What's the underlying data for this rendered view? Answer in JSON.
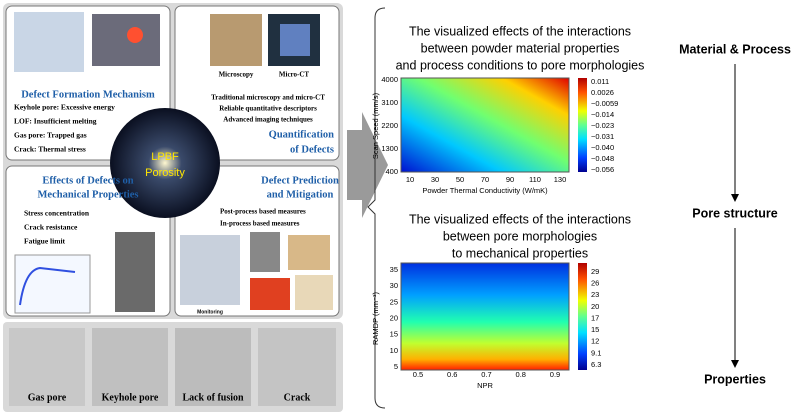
{
  "left": {
    "formation": {
      "title": "Defect Formation Mechanism",
      "bullets": [
        "Keyhole pore: Excessive energy",
        "LOF: Insufficient melting",
        "Gas pore: Trapped gas",
        "Crack: Thermal stress"
      ]
    },
    "quantification": {
      "image_labels": [
        "Microscopy",
        "Micro-CT"
      ],
      "bullets": [
        "Traditional microscopy and micro-CT",
        "Reliable quantitative descriptors",
        "Advanced imaging techniques"
      ],
      "title": [
        "Quantification",
        "of Defects"
      ]
    },
    "center": [
      "LPBF",
      "Porosity"
    ],
    "effects": {
      "title": [
        "Effects of Defects on",
        "Mechanical Properties"
      ],
      "bullets": [
        "Stress concentration",
        "Crack resistance",
        "Fatigue limit"
      ]
    },
    "prediction": {
      "title": [
        "Defect Prediction",
        "and Mitigation"
      ],
      "bullets": [
        "Post-process based measures",
        "In-process based measures"
      ],
      "image_label": "Monitoring"
    },
    "defect_types": [
      "Gas pore",
      "Keyhole pore",
      "Lack of fusion",
      "Crack"
    ]
  },
  "right": {
    "map1": {
      "title": [
        "The visualized effects of the interactions",
        "between powder material properties",
        "and process conditions to pore morphologies"
      ],
      "ylabel": "Scan Speed (mm/s)",
      "yticks": [
        "4000",
        "3100",
        "2200",
        "1300",
        "400"
      ],
      "xlabel": "Powder Thermal Conductivity (W/mK)",
      "xticks": [
        "10",
        "30",
        "50",
        "70",
        "90",
        "110",
        "130"
      ],
      "cbar": [
        "0.011",
        "0.0026",
        "−0.0059",
        "−0.014",
        "−0.023",
        "−0.031",
        "−0.040",
        "−0.048",
        "−0.056"
      ]
    },
    "map2": {
      "title": [
        "The visualized effects of the interactions",
        "between pore morphologies",
        "to mechanical properties"
      ],
      "ylabel": "RAMDP (mm⁻³)",
      "yticks": [
        "35",
        "30",
        "25",
        "20",
        "15",
        "10",
        "5"
      ],
      "xlabel": "NPR",
      "xticks": [
        "0.5",
        "0.6",
        "0.7",
        "0.8",
        "0.9"
      ],
      "cbar": [
        "29",
        "26",
        "23",
        "20",
        "17",
        "15",
        "12",
        "9.1",
        "6.3"
      ]
    },
    "flow": [
      "Material & Process",
      "Pore structure",
      "Properties"
    ]
  }
}
